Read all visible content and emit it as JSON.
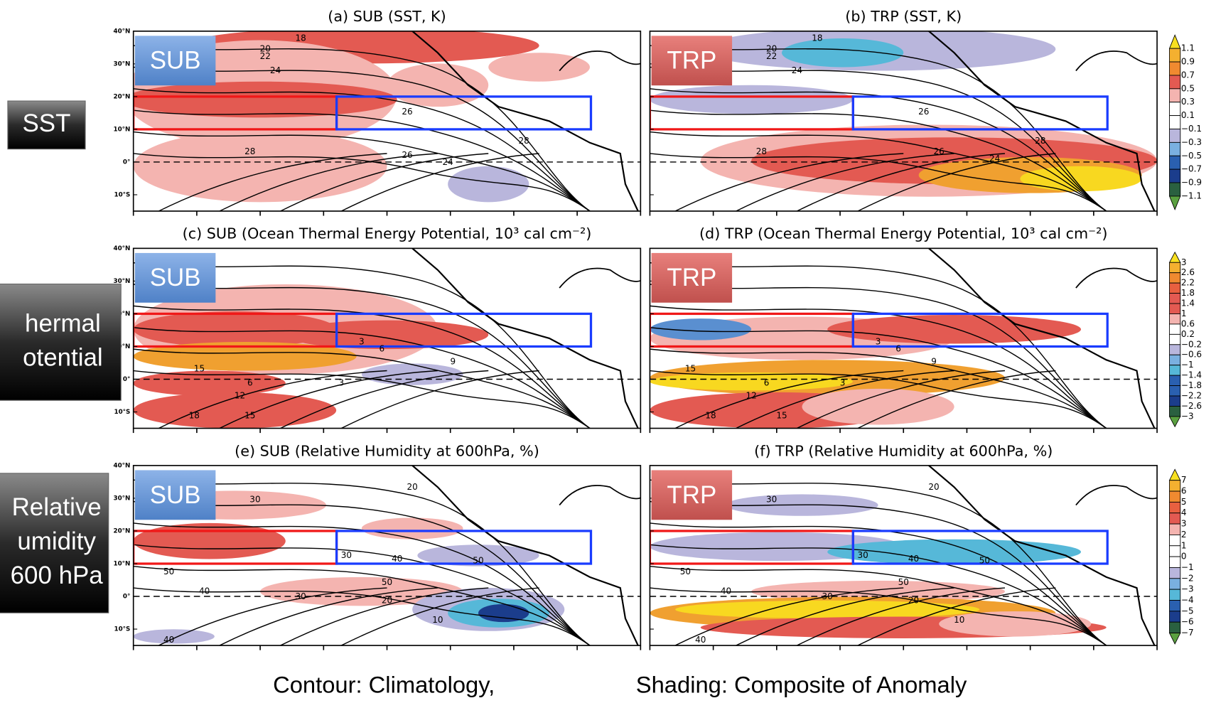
{
  "panels": [
    {
      "title": "(a) SUB (SST, K)",
      "tag": "SUB",
      "contour_labels": [
        "18",
        "20",
        "22",
        "24",
        "26",
        "28",
        "28",
        "26",
        "24"
      ]
    },
    {
      "title": "(b) TRP (SST, K)",
      "tag": "TRP",
      "contour_labels": [
        "18",
        "20",
        "22",
        "24",
        "26",
        "28",
        "28",
        "26",
        "24"
      ]
    },
    {
      "title": "(c) SUB (Ocean Thermal Energy Potential, 10³ cal cm⁻²)",
      "tag": "SUB",
      "contour_labels": [
        "3",
        "6",
        "9",
        "15",
        "6",
        "3",
        "12",
        "18",
        "15"
      ]
    },
    {
      "title": "(d) TRP (Ocean Thermal Energy Potential, 10³ cal cm⁻²)",
      "tag": "TRP",
      "contour_labels": [
        "3",
        "6",
        "9",
        "15",
        "6",
        "3",
        "12",
        "18",
        "15"
      ]
    },
    {
      "title": "(e) SUB (Relative Humidity at 600hPa, %)",
      "tag": "SUB",
      "contour_labels": [
        "30",
        "20",
        "30",
        "40",
        "50",
        "50",
        "50",
        "40",
        "30",
        "20",
        "10",
        "40"
      ]
    },
    {
      "title": "(f) TRP (Relative Humidity at 600hPa, %)",
      "tag": "TRP",
      "contour_labels": [
        "30",
        "20",
        "30",
        "40",
        "50",
        "50",
        "50",
        "40",
        "30",
        "20",
        "10",
        "40"
      ]
    }
  ],
  "lat_labels": [
    "40°N",
    "30°N",
    "20°N",
    "10°N",
    "0°",
    "10°S"
  ],
  "row_labels": [
    {
      "lines": [
        "SST"
      ]
    },
    {
      "lines": [
        "hermal",
        "otential"
      ]
    },
    {
      "lines": [
        "Relative",
        "umidity",
        "600 hPa"
      ]
    }
  ],
  "colorbars": [
    {
      "labels": [
        "1.1",
        "0.9",
        "0.7",
        "0.5",
        "0.3",
        "0.1",
        "−0.1",
        "−0.3",
        "−0.5",
        "−0.7",
        "−0.9",
        "−1.1"
      ]
    },
    {
      "labels": [
        "3",
        "2.6",
        "2.2",
        "1.8",
        "1.4",
        "1",
        "0.6",
        "0.2",
        "−0.2",
        "−0.6",
        "−1",
        "−1.4",
        "−1.8",
        "−2.2",
        "−2.6",
        "−3"
      ]
    },
    {
      "labels": [
        "7",
        "6",
        "5",
        "4",
        "3",
        "2",
        "1",
        "0",
        "−1",
        "−2",
        "−3",
        "−4",
        "−5",
        "−6",
        "−7"
      ]
    }
  ],
  "caption": [
    "Contour: Climatology,",
    "Shading: Composite of Anomaly"
  ]
}
